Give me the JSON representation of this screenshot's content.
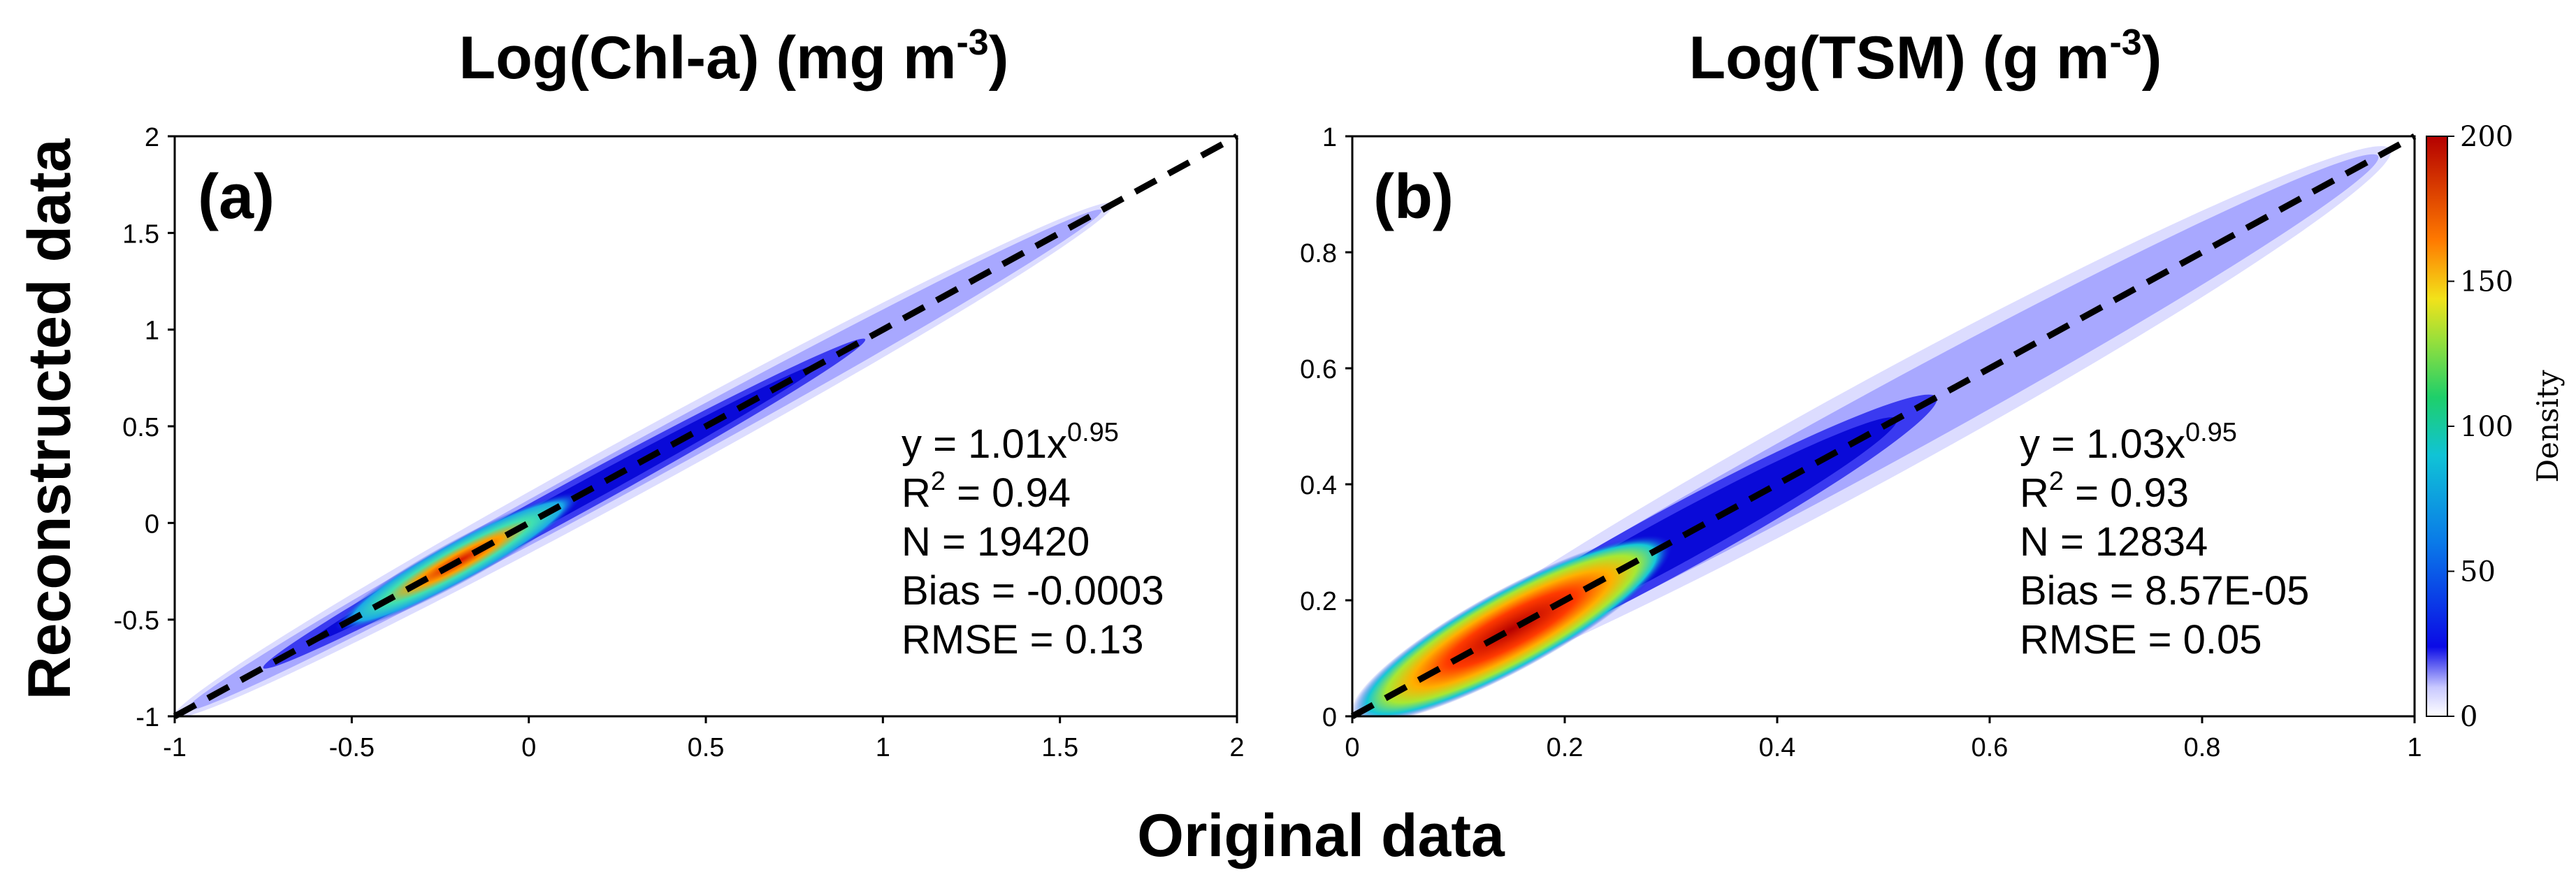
{
  "figure": {
    "xlabel": "Original data",
    "ylabel": "Reconstructed data"
  },
  "colorbar": {
    "label": "Density",
    "ticks": [
      "0",
      "50",
      "100",
      "150",
      "200"
    ],
    "range": [
      0,
      200
    ],
    "colors": [
      "#ffffff",
      "#0b0be6",
      "#10c3d6",
      "#1ecf6a",
      "#f2e21a",
      "#ff7a00",
      "#b40000"
    ]
  },
  "chart_data": [
    {
      "type": "heatmap",
      "panel_label": "(a)",
      "title_main": "Log(Chl-a) (mg m",
      "title_sup": "-3",
      "title_close": ")",
      "xlabel": "Original data",
      "ylabel": "Reconstructed data",
      "xlim": [
        -1,
        2
      ],
      "ylim": [
        -1,
        2
      ],
      "xticks": [
        "-1",
        "-0.5",
        "0",
        "0.5",
        "1",
        "1.5",
        "2"
      ],
      "yticks": [
        "-1",
        "-0.5",
        "0",
        "0.5",
        "1",
        "1.5",
        "2"
      ],
      "reference_line": {
        "x": [
          -1,
          2
        ],
        "y": [
          -1,
          2
        ]
      },
      "density_peak": {
        "x": -0.2,
        "y": -0.2,
        "value": 200
      },
      "stats": {
        "eq_main": "y = 1.01x",
        "eq_exp": "0.95",
        "r2_pre": "R",
        "r2_sup": "2",
        "r2_post": " = 0.94",
        "n": "N = 19420",
        "bias": "Bias = -0.0003",
        "rmse": "RMSE = 0.13"
      }
    },
    {
      "type": "heatmap",
      "panel_label": "(b)",
      "title_main": "Log(TSM) (g m",
      "title_sup": "-3",
      "title_close": ")",
      "xlabel": "Original data",
      "ylabel": "Reconstructed data",
      "xlim": [
        0,
        1
      ],
      "ylim": [
        0,
        1
      ],
      "xticks": [
        "0",
        "0.2",
        "0.4",
        "0.6",
        "0.8",
        "1"
      ],
      "yticks": [
        "0",
        "0.2",
        "0.4",
        "0.6",
        "0.8",
        "1"
      ],
      "reference_line": {
        "x": [
          0,
          1
        ],
        "y": [
          0,
          1
        ]
      },
      "density_peak": {
        "x": 0.15,
        "y": 0.15,
        "value": 200
      },
      "stats": {
        "eq_main": "y = 1.03x",
        "eq_exp": "0.95",
        "r2_pre": "R",
        "r2_sup": "2",
        "r2_post": " = 0.93",
        "n": "N = 12834",
        "bias": "Bias = 8.57E-05",
        "rmse": "RMSE = 0.05"
      }
    }
  ]
}
